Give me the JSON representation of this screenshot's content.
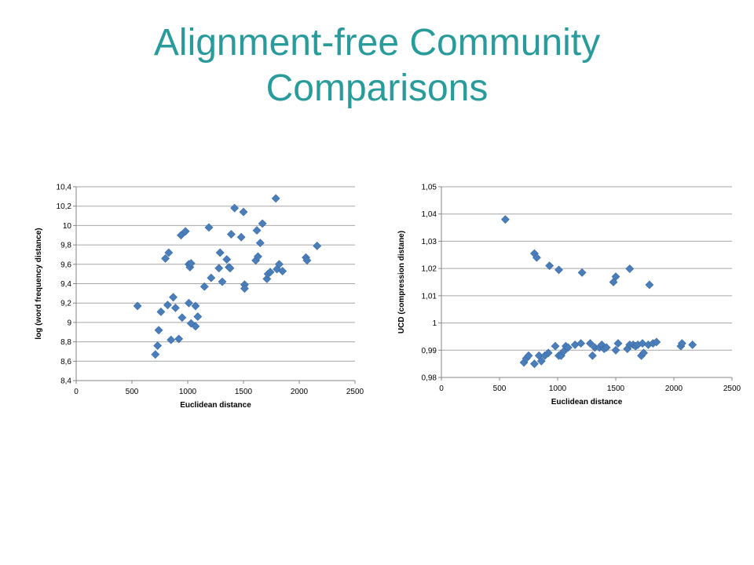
{
  "title": {
    "line1": "Alignment-free Community",
    "line2": "Comparisons"
  },
  "colors": {
    "title": "#2a9b9b",
    "marker": "#4a7ebb",
    "marker_stroke": "#3b6aa0",
    "grid": "#a6a6a6",
    "axis": "#868686"
  },
  "chart_data": [
    {
      "type": "scatter",
      "marker": "diamond",
      "xlabel": "Euclidean distance",
      "ylabel": "log (word frequency distance)",
      "xlim": [
        0,
        2500
      ],
      "ylim": [
        8.4,
        10.4
      ],
      "xticks": [
        0,
        500,
        1000,
        1500,
        2000,
        2500
      ],
      "yticks": [
        8.4,
        8.6,
        8.8,
        9,
        9.2,
        9.4,
        9.6,
        9.8,
        10,
        10.2,
        10.4
      ],
      "xtick_labels": [
        "0",
        "500",
        "1000",
        "1500",
        "2000",
        "2500"
      ],
      "ytick_labels": [
        "8,4",
        "8,6",
        "8,8",
        "9",
        "9,2",
        "9,4",
        "9,6",
        "9,8",
        "10",
        "10,2",
        "10,4"
      ],
      "grid": "horizontal",
      "x": [
        550,
        710,
        730,
        740,
        760,
        800,
        820,
        830,
        850,
        870,
        890,
        920,
        940,
        950,
        980,
        1010,
        1010,
        1020,
        1030,
        1030,
        1070,
        1070,
        1090,
        1150,
        1190,
        1210,
        1280,
        1290,
        1310,
        1350,
        1370,
        1380,
        1390,
        1420,
        1480,
        1500,
        1510,
        1510,
        1620,
        1610,
        1630,
        1650,
        1670,
        1710,
        1720,
        1740,
        1790,
        1800,
        1820,
        1850,
        2060,
        2070,
        2160
      ],
      "y": [
        9.17,
        8.67,
        8.76,
        8.92,
        9.11,
        9.66,
        9.18,
        9.72,
        8.82,
        9.26,
        9.15,
        8.83,
        9.9,
        9.05,
        9.94,
        9.2,
        9.6,
        9.57,
        9.61,
        8.99,
        8.96,
        9.17,
        9.06,
        9.37,
        9.98,
        9.46,
        9.56,
        9.72,
        9.42,
        9.65,
        9.57,
        9.56,
        9.91,
        10.18,
        9.88,
        10.14,
        9.39,
        9.35,
        9.95,
        9.64,
        9.68,
        9.82,
        10.02,
        9.45,
        9.5,
        9.52,
        10.28,
        9.55,
        9.6,
        9.53,
        9.67,
        9.64,
        9.79
      ]
    },
    {
      "type": "scatter",
      "marker": "diamond",
      "xlabel": "Euclidean distance",
      "ylabel": "UCD (compression distane)",
      "xlim": [
        0,
        2500
      ],
      "ylim": [
        0.98,
        1.05
      ],
      "xticks": [
        0,
        500,
        1000,
        1500,
        2000,
        2500
      ],
      "yticks": [
        0.98,
        0.99,
        1,
        1.01,
        1.02,
        1.03,
        1.04,
        1.05
      ],
      "xtick_labels": [
        "0",
        "500",
        "1000",
        "1500",
        "2000",
        "2500"
      ],
      "ytick_labels": [
        "0,98",
        "0,99",
        "1",
        "1,01",
        "1,02",
        "1,03",
        "1,04",
        "1,05"
      ],
      "grid": "horizontal",
      "x": [
        550,
        800,
        820,
        930,
        1010,
        1210,
        1480,
        1500,
        1620,
        1790,
        710,
        730,
        750,
        800,
        840,
        860,
        890,
        920,
        980,
        1010,
        1030,
        1050,
        1070,
        1090,
        1150,
        1200,
        1280,
        1300,
        1320,
        1360,
        1380,
        1400,
        1420,
        1500,
        1520,
        1600,
        1620,
        1650,
        1670,
        1690,
        1720,
        1740,
        1730,
        1780,
        1820,
        1850,
        2060,
        2070,
        2160
      ],
      "y": [
        1.038,
        1.0255,
        1.024,
        1.021,
        1.0195,
        1.0185,
        1.015,
        1.017,
        1.0199,
        1.014,
        0.9855,
        0.987,
        0.988,
        0.985,
        0.988,
        0.986,
        0.988,
        0.989,
        0.9915,
        0.988,
        0.988,
        0.9895,
        0.9915,
        0.991,
        0.992,
        0.9925,
        0.9925,
        0.988,
        0.991,
        0.991,
        0.992,
        0.9905,
        0.991,
        0.99,
        0.9925,
        0.9905,
        0.992,
        0.992,
        0.9915,
        0.992,
        0.988,
        0.989,
        0.9925,
        0.992,
        0.9925,
        0.993,
        0.9915,
        0.9925,
        0.992
      ]
    }
  ]
}
